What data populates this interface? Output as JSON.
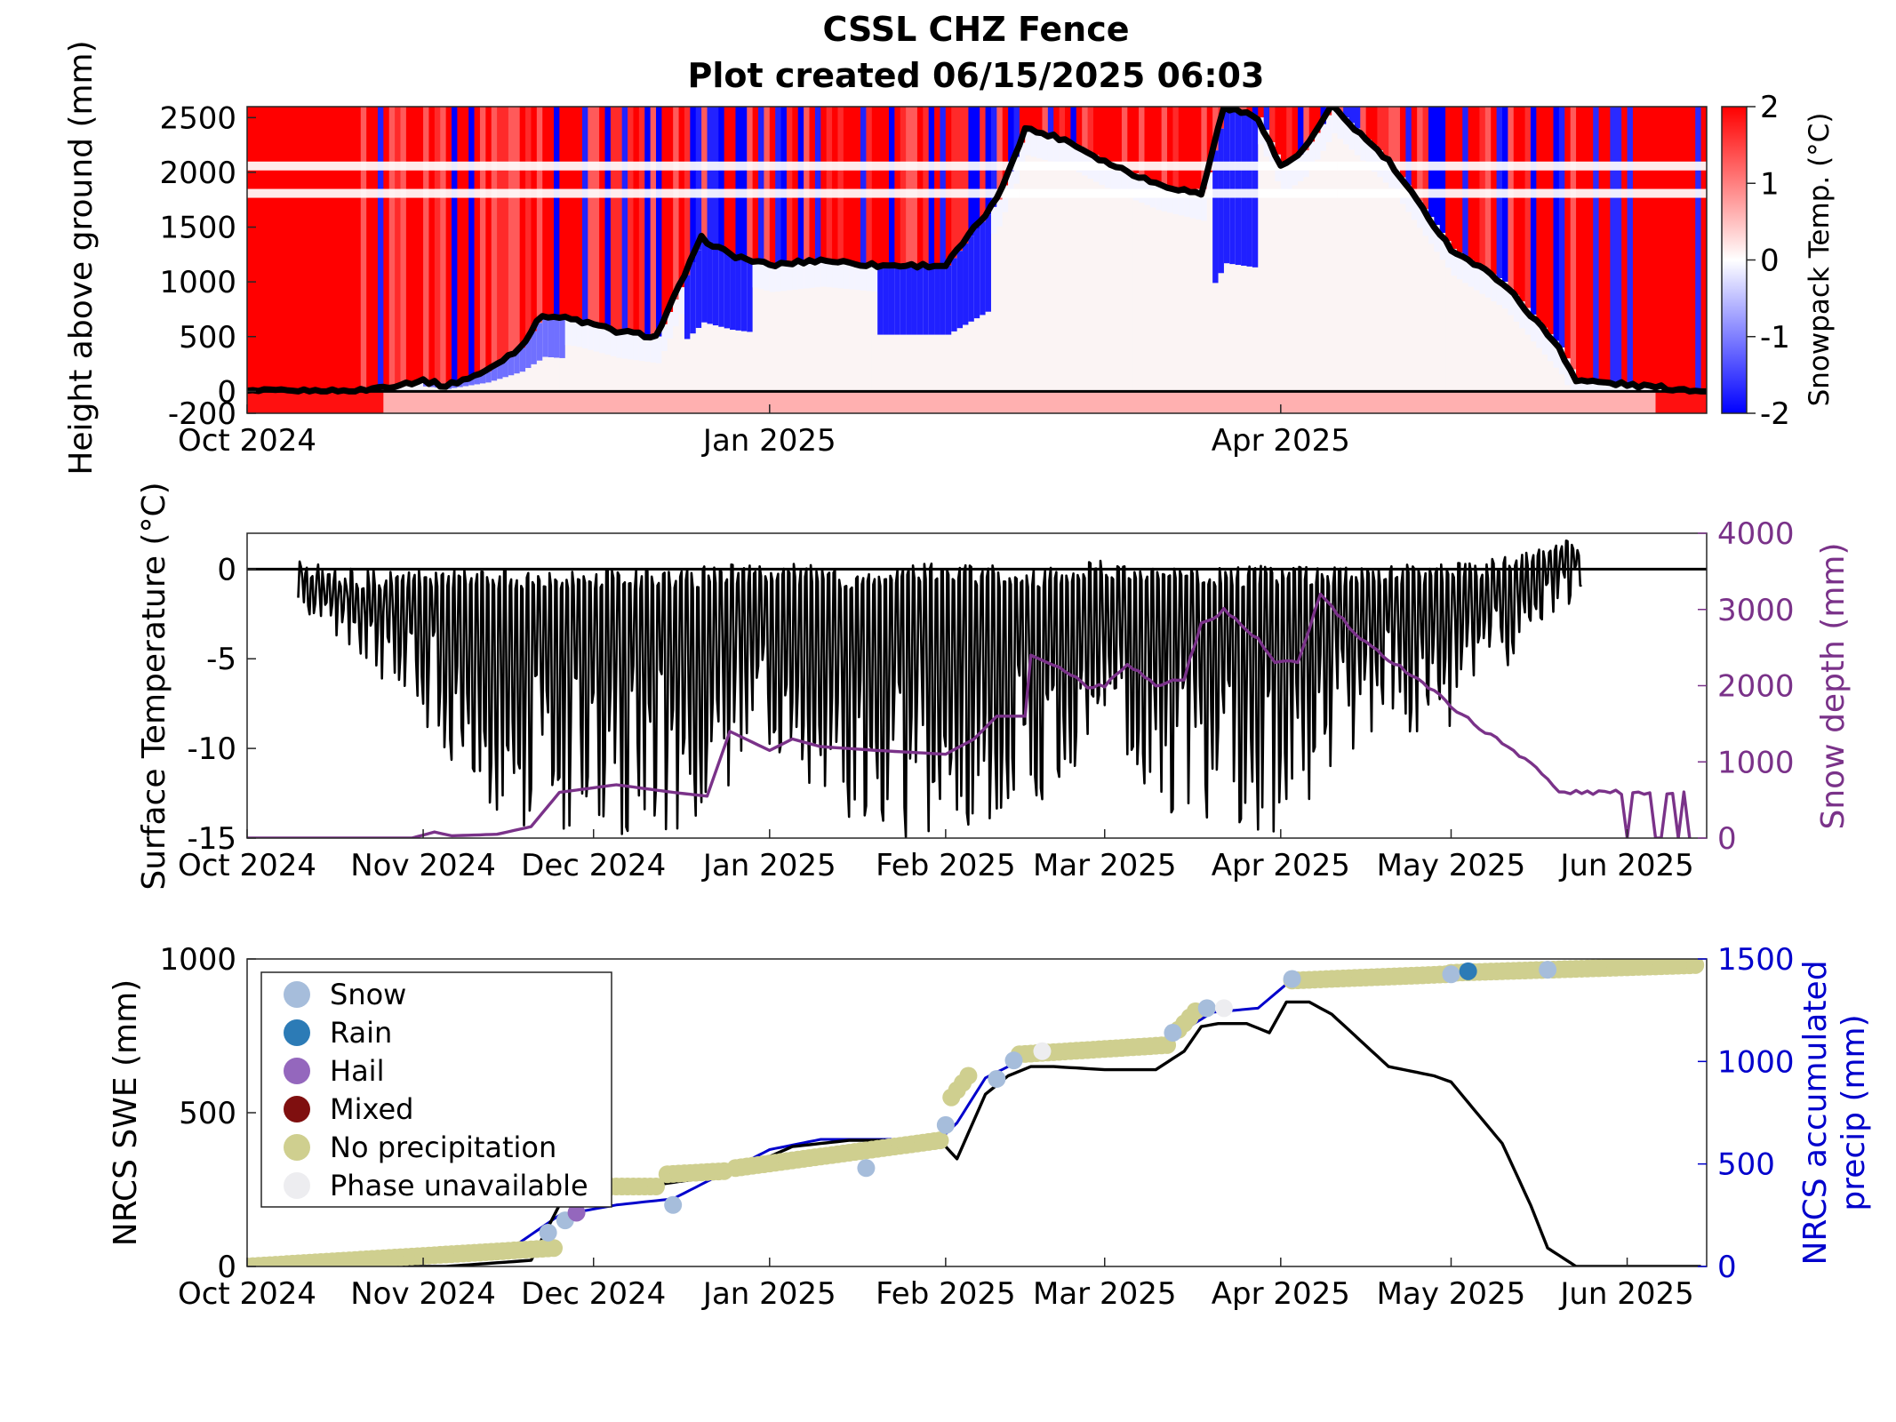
{
  "title": "CSSL CHZ Fence",
  "subtitle": "Plot created 06/15/2025 06:03",
  "colors": {
    "snowpack_hot": "#ff0000",
    "snowpack_cold": "#0000ff",
    "surface_temp_line": "#000000",
    "snow_depth_line": "#7a3289",
    "swe_line": "#000000",
    "precip_line": "#0000cc",
    "snow_dot": "#a6bddb",
    "rain_dot": "#2c7bb6",
    "hail_dot": "#9467bd",
    "mixed_dot": "#7f0f0f",
    "noprecip_dot": "#cfcf8f",
    "unavailable_dot": "#ededf0"
  },
  "chart_data": [
    {
      "type": "heatmap",
      "ylabel": "Height above ground (mm)",
      "colorbar_label": "Snowpack Temp. (°C)",
      "colorbar_ticks": [
        "2",
        "1",
        "0",
        "-1",
        "-2"
      ],
      "color_range": [
        -2,
        2
      ],
      "ylim": [
        -200,
        2600
      ],
      "yticks": [
        "2500",
        "2000",
        "1500",
        "1000",
        "500",
        "0",
        "-200"
      ],
      "ytick_values": [
        2500,
        2000,
        1500,
        1000,
        500,
        0,
        -200
      ],
      "xlim": [
        "2024-10-01",
        "2025-06-15"
      ],
      "xticks": [
        "Oct 2024",
        "Jan 2025",
        "Apr 2025"
      ],
      "xtick_dates": [
        "2024-10-01",
        "2025-01-01",
        "2025-04-01"
      ],
      "snow_depth_series": {
        "x": [
          "2024-10-01",
          "2024-10-20",
          "2024-11-01",
          "2024-11-05",
          "2024-11-12",
          "2024-11-18",
          "2024-11-22",
          "2024-11-28",
          "2024-12-05",
          "2024-12-12",
          "2024-12-20",
          "2024-12-25",
          "2025-01-01",
          "2025-01-10",
          "2025-01-20",
          "2025-02-01",
          "2025-02-10",
          "2025-02-15",
          "2025-02-22",
          "2025-03-01",
          "2025-03-10",
          "2025-03-18",
          "2025-03-22",
          "2025-03-28",
          "2025-04-01",
          "2025-04-05",
          "2025-04-10",
          "2025-04-20",
          "2025-05-01",
          "2025-05-10",
          "2025-05-20",
          "2025-05-23",
          "2025-06-15"
        ],
        "y": [
          0,
          0,
          100,
          50,
          180,
          400,
          700,
          650,
          550,
          500,
          1400,
          1250,
          1150,
          1200,
          1150,
          1150,
          1750,
          2400,
          2300,
          2100,
          1900,
          1800,
          2600,
          2500,
          2050,
          2200,
          2600,
          2100,
          1300,
          1000,
          400,
          100,
          0
        ]
      },
      "cold_bands": [
        {
          "start": "2024-11-01",
          "end": "2024-11-25",
          "intensity": 0.6
        },
        {
          "start": "2024-12-17",
          "end": "2024-12-28",
          "intensity": 1.0
        },
        {
          "start": "2025-01-20",
          "end": "2025-02-08",
          "intensity": 0.9
        },
        {
          "start": "2025-03-20",
          "end": "2025-03-27",
          "intensity": 0.9
        }
      ]
    },
    {
      "type": "line",
      "ylabel": "Surface Temperature (°C)",
      "y2label": "Snow depth (mm)",
      "ylim": [
        -15,
        2
      ],
      "yticks": [
        "0",
        "-5",
        "-10",
        "-15"
      ],
      "ytick_values": [
        0,
        -5,
        -10,
        -15
      ],
      "y2lim": [
        0,
        4000
      ],
      "y2ticks": [
        "4000",
        "3000",
        "2000",
        "1000",
        "0"
      ],
      "y2tick_values": [
        4000,
        3000,
        2000,
        1000,
        0
      ],
      "xlim": [
        "2024-10-01",
        "2025-06-15"
      ],
      "xticks": [
        "Oct 2024",
        "Nov 2024",
        "Dec 2024",
        "Jan 2025",
        "Feb 2025",
        "Mar 2025",
        "Apr 2025",
        "May 2025",
        "Jun 2025"
      ],
      "xtick_dates": [
        "2024-10-01",
        "2024-11-01",
        "2024-12-01",
        "2025-01-01",
        "2025-02-01",
        "2025-03-01",
        "2025-04-01",
        "2025-05-01",
        "2025-06-01"
      ],
      "series": [
        {
          "name": "Surface Temperature",
          "x": [
            "2024-10-01",
            "2024-10-10",
            "2024-10-20",
            "2024-11-01",
            "2024-11-15",
            "2024-12-01",
            "2024-12-15",
            "2025-01-01",
            "2025-01-15",
            "2025-02-01",
            "2025-02-15",
            "2025-03-01",
            "2025-03-15",
            "2025-04-01",
            "2025-04-15",
            "2025-05-01",
            "2025-05-15",
            "2025-05-24"
          ],
          "y_daily_max": [
            2,
            0.5,
            0,
            0,
            0,
            0,
            0,
            0.5,
            0,
            0.5,
            0,
            0.5,
            0,
            0.3,
            0.2,
            0.3,
            1.0,
            2
          ],
          "y_daily_min": [
            2,
            -2,
            -5,
            -9,
            -15,
            -15,
            -15,
            -10,
            -15,
            -15,
            -15,
            -12,
            -14,
            -15,
            -10,
            -9,
            -4,
            -2
          ]
        },
        {
          "name": "Snow depth",
          "axis": "right",
          "x": [
            "2024-10-01",
            "2024-10-30",
            "2024-11-03",
            "2024-11-06",
            "2024-11-14",
            "2024-11-20",
            "2024-11-25",
            "2024-12-05",
            "2024-12-15",
            "2024-12-21",
            "2024-12-25",
            "2025-01-01",
            "2025-01-05",
            "2025-01-10",
            "2025-01-20",
            "2025-02-01",
            "2025-02-06",
            "2025-02-10",
            "2025-02-15",
            "2025-02-16",
            "2025-02-22",
            "2025-02-26",
            "2025-03-01",
            "2025-03-05",
            "2025-03-10",
            "2025-03-15",
            "2025-03-18",
            "2025-03-22",
            "2025-03-28",
            "2025-03-31",
            "2025-04-04",
            "2025-04-08",
            "2025-04-15",
            "2025-04-25",
            "2025-05-05",
            "2025-05-15",
            "2025-05-20",
            "2025-05-22",
            "2025-06-10"
          ],
          "y": [
            0,
            0,
            80,
            30,
            50,
            150,
            600,
            700,
            600,
            550,
            1400,
            1150,
            1300,
            1200,
            1150,
            1100,
            1300,
            1600,
            1600,
            2400,
            2200,
            2000,
            2000,
            2300,
            2000,
            2100,
            2800,
            3000,
            2600,
            2300,
            2300,
            3200,
            2600,
            2100,
            1500,
            1000,
            600,
            600,
            600
          ]
        }
      ]
    },
    {
      "type": "scatter",
      "ylabel": "NRCS SWE (mm)",
      "y2label": "NRCS accumulated precip (mm)",
      "y2label_lines": [
        "NRCS accumulated",
        "precip (mm)"
      ],
      "ylim": [
        0,
        1000
      ],
      "yticks": [
        "1000",
        "500",
        "0"
      ],
      "ytick_values": [
        1000,
        500,
        0
      ],
      "y2lim": [
        0,
        1500
      ],
      "y2ticks": [
        "1500",
        "1000",
        "500",
        "0"
      ],
      "y2tick_values": [
        1500,
        1000,
        500,
        0
      ],
      "xlim": [
        "2024-10-01",
        "2025-06-15"
      ],
      "xticks": [
        "Oct 2024",
        "Nov 2024",
        "Dec 2024",
        "Jan 2025",
        "Feb 2025",
        "Mar 2025",
        "Apr 2025",
        "May 2025",
        "Jun 2025"
      ],
      "xtick_dates": [
        "2024-10-01",
        "2024-11-01",
        "2024-12-01",
        "2025-01-01",
        "2025-02-01",
        "2025-03-01",
        "2025-04-01",
        "2025-05-01",
        "2025-06-01"
      ],
      "legend": {
        "placement": "top-left",
        "entries": [
          "Snow",
          "Rain",
          "Hail",
          "Mixed",
          "No precipitation",
          "Phase unavailable"
        ]
      },
      "series": [
        {
          "name": "NRCS SWE",
          "x": [
            "2024-10-01",
            "2024-11-05",
            "2024-11-20",
            "2024-11-25",
            "2024-12-10",
            "2024-12-25",
            "2025-01-05",
            "2025-01-15",
            "2025-01-31",
            "2025-02-03",
            "2025-02-08",
            "2025-02-12",
            "2025-02-16",
            "2025-02-20",
            "2025-03-01",
            "2025-03-10",
            "2025-03-15",
            "2025-03-18",
            "2025-03-21",
            "2025-03-26",
            "2025-03-30",
            "2025-04-02",
            "2025-04-06",
            "2025-04-10",
            "2025-04-20",
            "2025-04-28",
            "2025-05-01",
            "2025-05-10",
            "2025-05-15",
            "2025-05-18",
            "2025-05-23",
            "2025-06-14"
          ],
          "y": [
            0,
            0,
            20,
            200,
            260,
            300,
            390,
            410,
            410,
            350,
            560,
            620,
            650,
            650,
            640,
            640,
            700,
            780,
            790,
            790,
            760,
            860,
            860,
            820,
            650,
            620,
            600,
            400,
            200,
            60,
            0,
            0
          ]
        },
        {
          "name": "NRCS accumulated precip",
          "axis": "right",
          "x": [
            "2024-10-01",
            "2024-10-20",
            "2024-11-01",
            "2024-11-15",
            "2024-11-25",
            "2024-12-05",
            "2024-12-15",
            "2025-01-01",
            "2025-01-10",
            "2025-01-20",
            "2025-01-31",
            "2025-02-03",
            "2025-02-08",
            "2025-02-16",
            "2025-03-01",
            "2025-03-10",
            "2025-03-20",
            "2025-03-28",
            "2025-04-03",
            "2025-04-15",
            "2025-05-01",
            "2025-05-15",
            "2025-06-14"
          ],
          "y": [
            0,
            10,
            30,
            60,
            250,
            300,
            330,
            570,
            620,
            620,
            620,
            700,
            920,
            1030,
            1050,
            1070,
            1240,
            1260,
            1400,
            1400,
            1430,
            1470,
            1470
          ]
        }
      ],
      "phase_points": {
        "no_precip_ranges": [
          [
            "2024-10-01",
            "2024-11-24",
            0,
            60
          ],
          [
            "2024-11-28",
            "2024-12-12",
            260,
            260
          ],
          [
            "2024-12-14",
            "2024-12-24",
            300,
            310
          ],
          [
            "2024-12-26",
            "2025-01-31",
            320,
            410
          ],
          [
            "2025-02-02",
            "2025-02-05",
            550,
            620
          ],
          [
            "2025-02-14",
            "2025-03-12",
            690,
            720
          ],
          [
            "2025-03-14",
            "2025-03-17",
            770,
            830
          ],
          [
            "2025-04-03",
            "2025-04-30",
            930,
            950
          ],
          [
            "2025-05-01",
            "2025-06-13",
            955,
            980
          ]
        ],
        "snow": [
          [
            "2024-11-23",
            110
          ],
          [
            "2024-11-26",
            150
          ],
          [
            "2024-12-15",
            200
          ],
          [
            "2025-01-18",
            320
          ],
          [
            "2025-02-01",
            460
          ],
          [
            "2025-02-10",
            610
          ],
          [
            "2025-02-13",
            670
          ],
          [
            "2025-03-13",
            760
          ],
          [
            "2025-03-19",
            840
          ],
          [
            "2025-04-03",
            935
          ],
          [
            "2025-05-01",
            950
          ],
          [
            "2025-05-18",
            965
          ]
        ],
        "rain": [
          [
            "2025-05-04",
            960
          ]
        ],
        "hail": [
          [
            "2024-11-28",
            175
          ]
        ],
        "mixed": [],
        "unavailable": [
          [
            "2025-03-22",
            840
          ],
          [
            "2025-02-18",
            700
          ]
        ]
      }
    }
  ]
}
